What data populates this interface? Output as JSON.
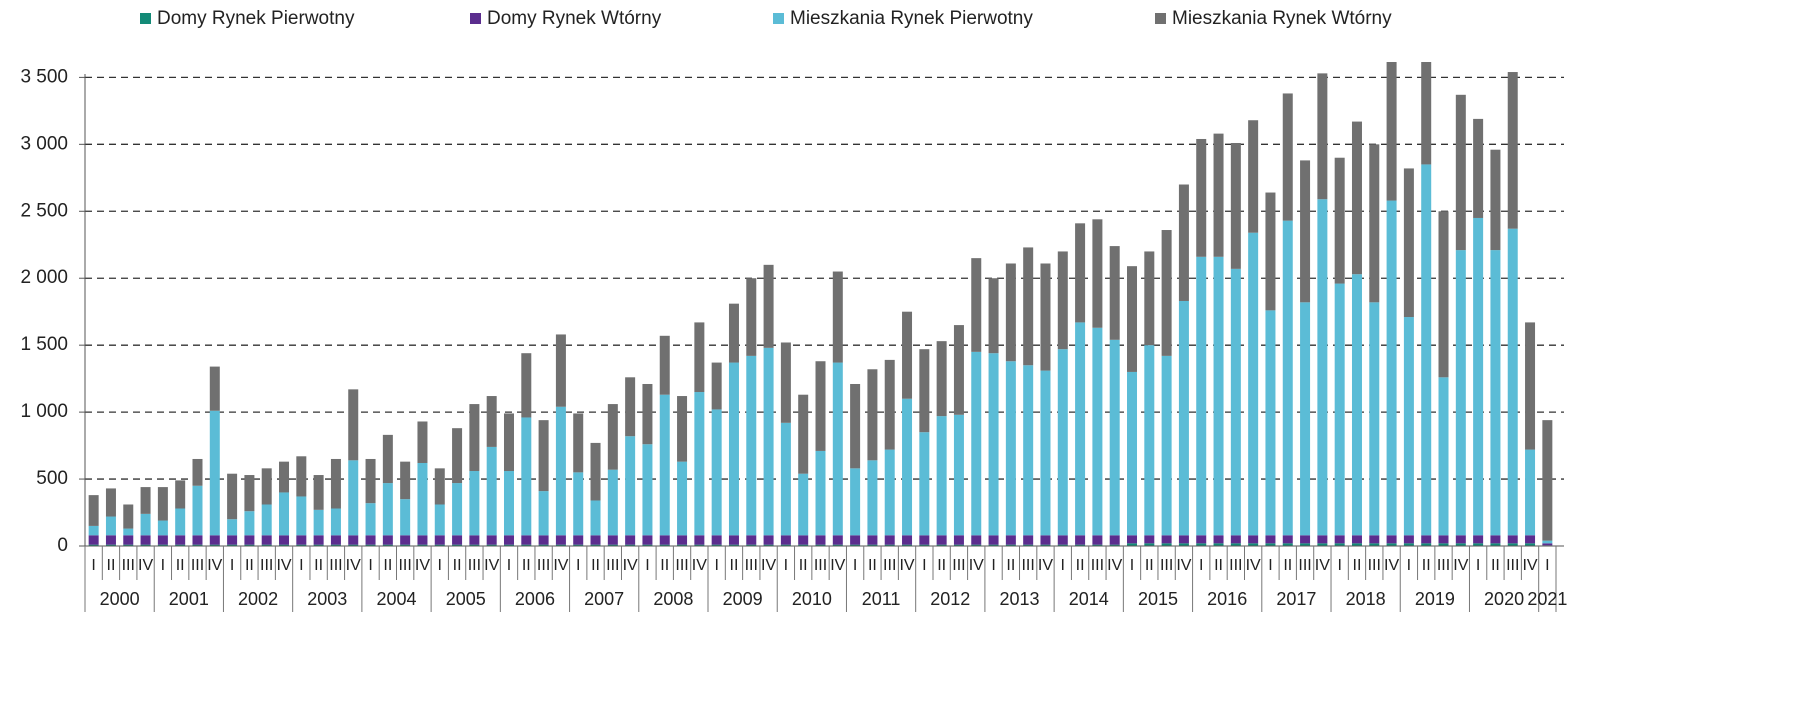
{
  "chart_data": {
    "type": "stacked_bar",
    "categories": [
      "I",
      "II",
      "III",
      "IV",
      "I",
      "II",
      "III",
      "IV",
      "I",
      "II",
      "III",
      "IV",
      "I",
      "II",
      "III",
      "IV",
      "I",
      "II",
      "III",
      "IV",
      "I",
      "II",
      "III",
      "IV",
      "I",
      "II",
      "III",
      "IV",
      "I",
      "II",
      "III",
      "IV",
      "I",
      "II",
      "III",
      "IV",
      "I",
      "II",
      "III",
      "IV",
      "I",
      "II",
      "III",
      "IV",
      "I",
      "II",
      "III",
      "IV",
      "I",
      "II",
      "III",
      "IV",
      "I",
      "II",
      "III",
      "IV",
      "I",
      "II",
      "III",
      "IV",
      "I",
      "II",
      "III",
      "IV",
      "I",
      "II",
      "III",
      "IV",
      "I",
      "II",
      "III",
      "IV",
      "I",
      "II",
      "III",
      "IV",
      "I",
      "II",
      "III",
      "IV",
      "I",
      "II",
      "III",
      "IV",
      "I"
    ],
    "years": [
      "2000",
      "2001",
      "2002",
      "2003",
      "2004",
      "2005",
      "2006",
      "2007",
      "2008",
      "2009",
      "2010",
      "2011",
      "2012",
      "2013",
      "2014",
      "2015",
      "2016",
      "2017",
      "2018",
      "2019",
      "2020",
      "2021"
    ],
    "series": [
      {
        "name": "Domy Rynek Pierwotny",
        "color": "#138a77",
        "values": [
          10,
          10,
          10,
          10,
          10,
          10,
          10,
          10,
          10,
          10,
          10,
          10,
          10,
          10,
          10,
          10,
          10,
          10,
          10,
          10,
          10,
          10,
          10,
          10,
          10,
          10,
          10,
          10,
          10,
          10,
          10,
          10,
          10,
          10,
          10,
          10,
          10,
          10,
          10,
          10,
          10,
          10,
          10,
          10,
          10,
          10,
          10,
          10,
          10,
          10,
          10,
          10,
          10,
          10,
          10,
          10,
          10,
          10,
          10,
          10,
          20,
          20,
          20,
          20,
          20,
          20,
          20,
          20,
          20,
          20,
          20,
          20,
          20,
          20,
          20,
          20,
          20,
          20,
          20,
          20,
          20,
          20,
          20,
          20,
          5
        ]
      },
      {
        "name": "Domy Rynek Wtórny",
        "color": "#5b2d8e",
        "values": [
          70,
          70,
          70,
          70,
          70,
          70,
          70,
          70,
          70,
          70,
          70,
          70,
          70,
          70,
          70,
          70,
          70,
          70,
          70,
          70,
          70,
          70,
          70,
          70,
          70,
          70,
          70,
          70,
          70,
          70,
          70,
          70,
          70,
          70,
          70,
          70,
          70,
          70,
          70,
          70,
          70,
          70,
          70,
          70,
          70,
          70,
          70,
          70,
          70,
          70,
          70,
          70,
          70,
          70,
          70,
          70,
          70,
          70,
          70,
          70,
          60,
          60,
          60,
          60,
          60,
          60,
          60,
          60,
          60,
          60,
          60,
          60,
          60,
          60,
          60,
          60,
          60,
          60,
          60,
          60,
          60,
          60,
          60,
          60,
          15
        ]
      },
      {
        "name": "Mieszkania Rynek Pierwotny",
        "color": "#5bbcd6",
        "values": [
          70,
          140,
          50,
          160,
          110,
          200,
          370,
          930,
          120,
          180,
          230,
          320,
          290,
          190,
          200,
          560,
          240,
          390,
          270,
          540,
          230,
          390,
          480,
          660,
          480,
          880,
          330,
          960,
          470,
          260,
          490,
          740,
          680,
          1050,
          550,
          1070,
          940,
          1290,
          1340,
          1400,
          840,
          460,
          630,
          1290,
          500,
          560,
          640,
          1020,
          770,
          890,
          900,
          1370,
          1360,
          1300,
          1270,
          1230,
          1390,
          1590,
          1550,
          1460,
          1220,
          1420,
          1340,
          1750,
          2080,
          2080,
          1990,
          2260,
          1680,
          2350,
          1740,
          2510,
          1880,
          1950,
          1740,
          2500,
          1630,
          2770,
          1180,
          2130,
          2370,
          2130,
          2290,
          640,
          20
        ]
      },
      {
        "name": "Mieszkania Rynek Wtórny",
        "color": "#707070",
        "values": [
          230,
          210,
          180,
          200,
          250,
          210,
          200,
          330,
          340,
          270,
          270,
          230,
          300,
          260,
          370,
          530,
          330,
          360,
          280,
          310,
          270,
          410,
          500,
          380,
          430,
          480,
          530,
          540,
          440,
          430,
          490,
          440,
          450,
          440,
          490,
          520,
          350,
          440,
          580,
          620,
          600,
          590,
          670,
          680,
          630,
          680,
          670,
          650,
          620,
          560,
          670,
          700,
          560,
          730,
          880,
          800,
          730,
          740,
          810,
          700,
          790,
          700,
          940,
          870,
          880,
          920,
          940,
          840,
          880,
          950,
          1060,
          940,
          940,
          1140,
          1180,
          1040,
          1110,
          770,
          1240,
          1160,
          740,
          750,
          1170,
          950,
          900
        ]
      }
    ],
    "ylim": [
      0,
      3600
    ],
    "yticks": [
      0,
      500,
      {
        "value": 1000,
        "label": "1 000"
      },
      {
        "value": 1500,
        "label": "1 500"
      },
      {
        "value": 2000,
        "label": "2 000"
      },
      {
        "value": 2500,
        "label": "2 500"
      },
      {
        "value": 3000,
        "label": "3 000"
      },
      {
        "value": 3500,
        "label": "3 500"
      }
    ],
    "grid": true,
    "legend": "top"
  }
}
